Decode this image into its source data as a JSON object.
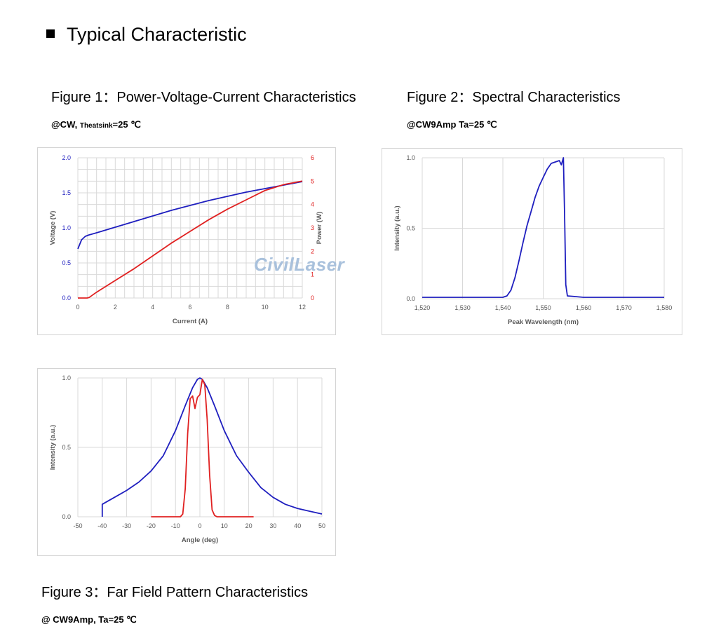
{
  "page": {
    "section_title": "Typical Characteristic",
    "figures": [
      {
        "title": "Figure 1：Power-Voltage-Current Characteristics",
        "subtitle_main": "@CW, ",
        "subtitle_small": "Theatsink",
        "subtitle_end": "=25 ℃"
      },
      {
        "title": "Figure 2：Spectral Characteristics",
        "subtitle": "@CW9Amp Ta=25 ℃"
      },
      {
        "title": "Figure 3：Far Field Pattern Characteristics",
        "subtitle": "@ CW9Amp, Ta=25 ℃"
      }
    ],
    "watermark": "CivilLaser"
  },
  "colors": {
    "blue": "#1f1fbf",
    "red": "#e02020",
    "grid": "#d9d9d9",
    "watermark": "#a9c1dc"
  },
  "chart_data": [
    {
      "type": "line",
      "xlabel": "Current (A)",
      "ylabel": "Voltage (V)",
      "y2label": "Power (W)",
      "xlim": [
        0,
        12
      ],
      "ylim": [
        0,
        2
      ],
      "y2lim": [
        0,
        6
      ],
      "xticks": [
        "0",
        "2",
        "4",
        "6",
        "8",
        "10",
        "12"
      ],
      "yticks": [
        "0.0",
        "0.5",
        "1.0",
        "1.5",
        "2.0"
      ],
      "y2ticks": [
        "0",
        "1",
        "2",
        "3",
        "4",
        "5",
        "6"
      ],
      "grid": true,
      "series": [
        {
          "name": "Voltage",
          "axis": "left",
          "color": "#1f1fbf",
          "x": [
            0,
            0.2,
            0.4,
            0.6,
            1,
            1.5,
            2,
            2.5,
            3,
            3.5,
            4,
            4.5,
            5,
            6,
            7,
            8,
            9,
            10,
            11,
            12
          ],
          "y": [
            0.7,
            0.83,
            0.88,
            0.9,
            0.93,
            0.97,
            1.01,
            1.05,
            1.09,
            1.13,
            1.17,
            1.21,
            1.25,
            1.32,
            1.39,
            1.45,
            1.51,
            1.56,
            1.61,
            1.66
          ]
        },
        {
          "name": "Power",
          "axis": "right",
          "color": "#e02020",
          "x": [
            0,
            0.5,
            0.6,
            1,
            2,
            3,
            4,
            5,
            6,
            7,
            8,
            9,
            10,
            11,
            12
          ],
          "y": [
            0,
            0,
            0.02,
            0.25,
            0.75,
            1.25,
            1.8,
            2.35,
            2.85,
            3.35,
            3.8,
            4.2,
            4.6,
            4.85,
            5.0
          ]
        }
      ]
    },
    {
      "type": "line",
      "xlabel": "Peak Wavelength (nm)",
      "ylabel": "Intensity (a.u.)",
      "xlim": [
        1520,
        1580
      ],
      "ylim": [
        0,
        1
      ],
      "xticks": [
        "1,520",
        "1,530",
        "1,540",
        "1,550",
        "1,560",
        "1,570",
        "1,580"
      ],
      "yticks": [
        "0.0",
        "0.5",
        "1.0"
      ],
      "grid": true,
      "series": [
        {
          "color": "#1f1fbf",
          "x": [
            1520,
            1530,
            1540,
            1541,
            1542,
            1543,
            1544,
            1545,
            1546,
            1547,
            1548,
            1549,
            1550,
            1551,
            1552,
            1553,
            1554,
            1554.5,
            1555,
            1555.3,
            1555.6,
            1556,
            1560,
            1570,
            1580
          ],
          "y": [
            0.01,
            0.01,
            0.01,
            0.02,
            0.06,
            0.15,
            0.27,
            0.4,
            0.52,
            0.62,
            0.72,
            0.8,
            0.86,
            0.92,
            0.96,
            0.97,
            0.98,
            0.95,
            1.0,
            0.6,
            0.1,
            0.02,
            0.01,
            0.01,
            0.01
          ]
        }
      ]
    },
    {
      "type": "line",
      "xlabel": "Angle (deg)",
      "ylabel": "Intensity (a.u.)",
      "xlim": [
        -50,
        50
      ],
      "ylim": [
        0,
        1
      ],
      "xticks": [
        "-50",
        "-40",
        "-30",
        "-20",
        "-10",
        "0",
        "10",
        "20",
        "30",
        "40",
        "50"
      ],
      "yticks": [
        "0.0",
        "0.5",
        "1.0"
      ],
      "grid": true,
      "series": [
        {
          "color": "#1f1fbf",
          "x": [
            -40,
            -40,
            -38,
            -35,
            -30,
            -25,
            -20,
            -15,
            -10,
            -6,
            -3,
            -1,
            0,
            1,
            3,
            6,
            10,
            15,
            20,
            25,
            30,
            35,
            40,
            45,
            50
          ],
          "y": [
            0,
            0.09,
            0.11,
            0.14,
            0.19,
            0.25,
            0.33,
            0.44,
            0.62,
            0.8,
            0.93,
            0.99,
            1.0,
            0.99,
            0.93,
            0.8,
            0.62,
            0.44,
            0.32,
            0.21,
            0.14,
            0.09,
            0.06,
            0.04,
            0.02
          ]
        },
        {
          "color": "#e02020",
          "x": [
            -20,
            -8,
            -7,
            -6,
            -5,
            -4,
            -3,
            -2,
            -1,
            0,
            1,
            2,
            3,
            4,
            5,
            6,
            7,
            22
          ],
          "y": [
            0,
            0,
            0.02,
            0.2,
            0.6,
            0.85,
            0.87,
            0.78,
            0.86,
            0.88,
            0.99,
            0.95,
            0.7,
            0.3,
            0.05,
            0.01,
            0,
            0
          ]
        }
      ]
    }
  ]
}
